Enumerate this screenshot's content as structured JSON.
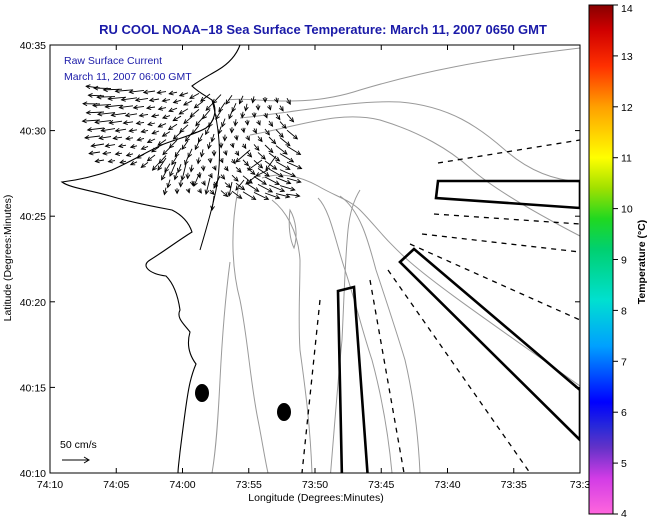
{
  "chart_data": {
    "type": "map",
    "title": "RU COOL  NOAA−18  Sea Surface Temperature:  March 11, 2007 0650 GMT",
    "xlabel": "Longitude (Degrees:Minutes)",
    "ylabel": "Latitude (Degrees:Minutes)",
    "x_ticks": [
      "74:10",
      "74:05",
      "74:00",
      "73:55",
      "73:50",
      "73:45",
      "73:40",
      "73:35",
      "73:3"
    ],
    "y_ticks": [
      "40:10",
      "40:15",
      "40:20",
      "40:25",
      "40:30",
      "40:35"
    ],
    "xlim_minutes_west": [
      10,
      30
    ],
    "ylim_minutes_north": [
      10,
      35
    ],
    "colorbar": {
      "label": "Temperature (°C)",
      "ticks": [
        "4",
        "5",
        "6",
        "7",
        "8",
        "9",
        "10",
        "11",
        "12",
        "13",
        "14"
      ],
      "range": [
        4,
        14
      ]
    },
    "annotation": {
      "line1": "Raw Surface Current",
      "line2": "March 11, 2007 06:00 GMT"
    },
    "scale_label": "50 cm/s",
    "colors": {
      "title": "#1a1aa8",
      "annotation": "#1a1aa8",
      "coast": "#000000",
      "bathymetry": "#9a9a9a"
    }
  }
}
